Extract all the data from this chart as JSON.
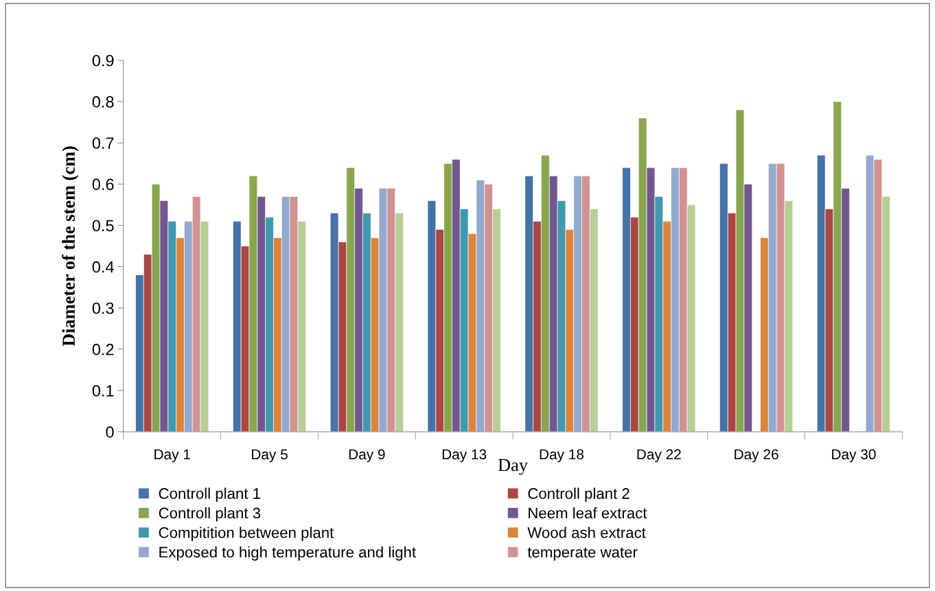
{
  "chart_data": {
    "type": "bar",
    "xlabel": "Day",
    "ylabel": "Diameter of the stem (cm)",
    "categories": [
      "Day 1",
      "Day 5",
      "Day 9",
      "Day 13",
      "Day 18",
      "Day 22",
      "Day 26",
      "Day 30"
    ],
    "series": [
      {
        "name": "Controll plant 1",
        "color": "#4572a7",
        "values": [
          0.38,
          0.51,
          0.53,
          0.56,
          0.62,
          0.64,
          0.65,
          0.67
        ]
      },
      {
        "name": "Controll plant 2",
        "color": "#aa4643",
        "values": [
          0.43,
          0.45,
          0.46,
          0.49,
          0.51,
          0.52,
          0.53,
          0.54
        ]
      },
      {
        "name": "Controll plant 3",
        "color": "#89a54e",
        "values": [
          0.6,
          0.62,
          0.64,
          0.65,
          0.67,
          0.76,
          0.78,
          0.8
        ]
      },
      {
        "name": "Neem leaf extract",
        "color": "#71588f",
        "values": [
          0.56,
          0.57,
          0.59,
          0.66,
          0.62,
          0.64,
          0.6,
          0.59
        ]
      },
      {
        "name": "Compitition between plant",
        "color": "#4198af",
        "values": [
          0.51,
          0.52,
          0.53,
          0.54,
          0.56,
          0.57,
          null,
          null
        ]
      },
      {
        "name": "Wood ash extract",
        "color": "#db843d",
        "values": [
          0.47,
          0.47,
          0.47,
          0.48,
          0.49,
          0.51,
          0.47,
          null
        ]
      },
      {
        "name": "Exposed to high temperature and light",
        "color": "#93a9cf",
        "values": [
          0.51,
          0.57,
          0.59,
          0.61,
          0.62,
          0.64,
          0.65,
          0.67
        ]
      },
      {
        "name": "temperate water",
        "color": "#d19392",
        "values": [
          0.57,
          0.57,
          0.59,
          0.6,
          0.62,
          0.64,
          0.65,
          0.66
        ]
      },
      {
        "color": "#b9cd96",
        "values": [
          0.51,
          0.51,
          0.53,
          0.54,
          0.54,
          0.55,
          0.56,
          0.57
        ]
      }
    ],
    "ylim": [
      0,
      0.9
    ],
    "yticks": [
      0,
      0.1,
      0.2,
      0.3,
      0.4,
      0.5,
      0.6,
      0.7,
      0.8,
      0.9
    ],
    "grid": false,
    "legend": "bottom"
  }
}
